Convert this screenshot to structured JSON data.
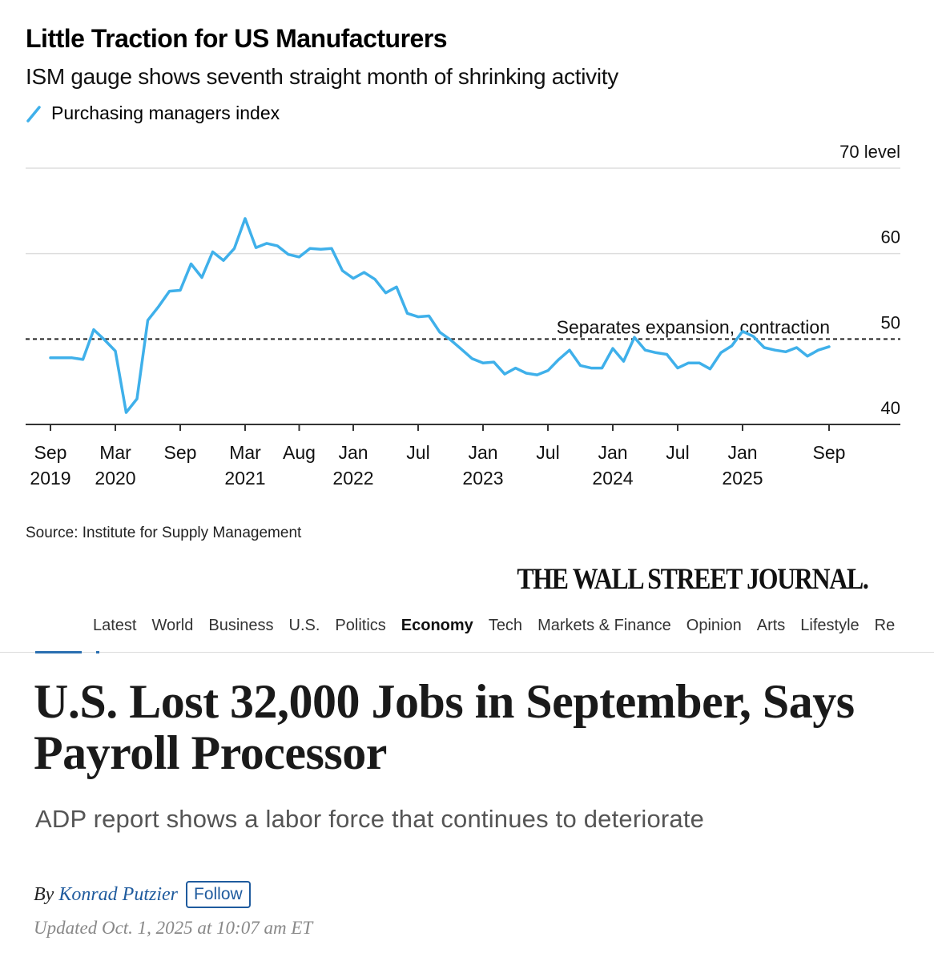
{
  "chart": {
    "title": "Little Traction for US Manufacturers",
    "subtitle": "ISM gauge shows seventh straight month of shrinking activity",
    "legend_label": "Purchasing managers index",
    "source": "Source: Institute for Supply Management",
    "line_color": "#3fb0ea",
    "y_ticks": [
      {
        "value": 70,
        "label": "70 level"
      },
      {
        "value": 60,
        "label": "60"
      },
      {
        "value": 50,
        "label": "50"
      },
      {
        "value": 40,
        "label": "40"
      }
    ],
    "x_ticks": [
      {
        "index": 0,
        "l1": "Sep",
        "l2": "2019"
      },
      {
        "index": 6,
        "l1": "Mar",
        "l2": "2020"
      },
      {
        "index": 12,
        "l1": "Sep",
        "l2": ""
      },
      {
        "index": 18,
        "l1": "Mar",
        "l2": "2021"
      },
      {
        "index": 23,
        "l1": "Aug",
        "l2": ""
      },
      {
        "index": 28,
        "l1": "Jan",
        "l2": "2022"
      },
      {
        "index": 34,
        "l1": "Jul",
        "l2": ""
      },
      {
        "index": 40,
        "l1": "Jan",
        "l2": "2023"
      },
      {
        "index": 46,
        "l1": "Jul",
        "l2": ""
      },
      {
        "index": 52,
        "l1": "Jan",
        "l2": "2024"
      },
      {
        "index": 58,
        "l1": "Jul",
        "l2": ""
      },
      {
        "index": 64,
        "l1": "Jan",
        "l2": "2025"
      },
      {
        "index": 72,
        "l1": "Sep",
        "l2": ""
      }
    ],
    "reference_line": {
      "value": 50,
      "label": "Separates expansion, contraction"
    }
  },
  "chart_data": {
    "type": "line",
    "x": [
      "2019-09",
      "2019-10",
      "2019-11",
      "2019-12",
      "2020-01",
      "2020-02",
      "2020-03",
      "2020-04",
      "2020-05",
      "2020-06",
      "2020-07",
      "2020-08",
      "2020-09",
      "2020-10",
      "2020-11",
      "2020-12",
      "2021-01",
      "2021-02",
      "2021-03",
      "2021-04",
      "2021-05",
      "2021-06",
      "2021-07",
      "2021-08",
      "2021-09",
      "2021-10",
      "2021-11",
      "2021-12",
      "2022-01",
      "2022-02",
      "2022-03",
      "2022-04",
      "2022-05",
      "2022-06",
      "2022-07",
      "2022-08",
      "2022-09",
      "2022-10",
      "2022-11",
      "2022-12",
      "2023-01",
      "2023-02",
      "2023-03",
      "2023-04",
      "2023-05",
      "2023-06",
      "2023-07",
      "2023-08",
      "2023-09",
      "2023-10",
      "2023-11",
      "2023-12",
      "2024-01",
      "2024-02",
      "2024-03",
      "2024-04",
      "2024-05",
      "2024-06",
      "2024-07",
      "2024-08",
      "2024-09",
      "2024-10",
      "2024-11",
      "2024-12",
      "2025-01",
      "2025-02",
      "2025-03",
      "2025-04",
      "2025-05",
      "2025-06",
      "2025-07",
      "2025-08",
      "2025-09"
    ],
    "series": [
      {
        "name": "Purchasing managers index",
        "values": [
          47.8,
          47.8,
          47.8,
          47.6,
          51.1,
          49.9,
          48.6,
          41.4,
          43.0,
          52.2,
          53.8,
          55.6,
          55.7,
          58.8,
          57.2,
          60.2,
          59.2,
          60.6,
          64.1,
          60.7,
          61.2,
          60.9,
          59.9,
          59.6,
          60.6,
          60.5,
          60.6,
          58.0,
          57.1,
          57.8,
          57.0,
          55.4,
          56.1,
          53.0,
          52.6,
          52.7,
          50.8,
          49.9,
          48.8,
          47.7,
          47.2,
          47.3,
          45.9,
          46.6,
          46.0,
          45.8,
          46.3,
          47.6,
          48.7,
          46.9,
          46.6,
          46.6,
          48.9,
          47.4,
          50.2,
          48.7,
          48.4,
          48.2,
          46.6,
          47.2,
          47.2,
          46.5,
          48.4,
          49.2,
          50.9,
          50.3,
          49.0,
          48.7,
          48.5,
          49.0,
          48.0,
          48.7,
          49.1
        ]
      }
    ],
    "y_unit": "level",
    "ylim": [
      40,
      70
    ],
    "reference_line": 50,
    "grid": true
  },
  "wsj": {
    "masthead": "THE WALL STREET JOURNAL.",
    "nav": [
      "Latest",
      "World",
      "Business",
      "U.S.",
      "Politics",
      "Economy",
      "Tech",
      "Markets & Finance",
      "Opinion",
      "Arts",
      "Lifestyle",
      "Re"
    ],
    "nav_active": "Economy",
    "headline": "U.S. Lost 32,000 Jobs in September, Says Payroll Processor",
    "dek": "ADP report shows a labor force that continues to deteriorate",
    "by": "By",
    "author": "Konrad Putzier",
    "follow": "Follow",
    "timestamp": "Updated Oct. 1, 2025 at 10:07 am ET",
    "link_color": "#1f5b9e"
  }
}
